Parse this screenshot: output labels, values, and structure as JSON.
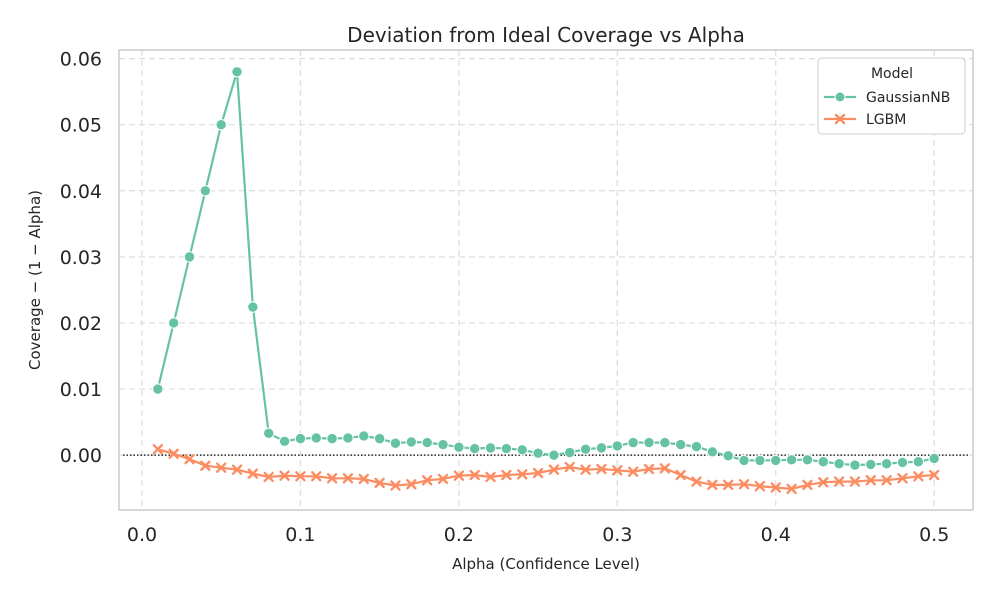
{
  "chart_data": {
    "type": "line",
    "title": "Deviation from Ideal Coverage vs Alpha",
    "xlabel": "Alpha (Confidence Level)",
    "ylabel": "Coverage − (1 − Alpha)",
    "xlim": [
      -0.0145,
      0.5245
    ],
    "ylim": [
      -0.0083,
      0.0613
    ],
    "xticks": [
      0.0,
      0.1,
      0.2,
      0.3,
      0.4,
      0.5
    ],
    "xtick_labels": [
      "0.0",
      "0.1",
      "0.2",
      "0.3",
      "0.4",
      "0.5"
    ],
    "yticks": [
      0.0,
      0.01,
      0.02,
      0.03,
      0.04,
      0.05,
      0.06
    ],
    "ytick_labels": [
      "0.00",
      "0.01",
      "0.02",
      "0.03",
      "0.04",
      "0.05",
      "0.06"
    ],
    "grid": true,
    "reference_line": {
      "y": 0,
      "style": "dotted",
      "color": "#000000"
    },
    "legend": {
      "title": "Model",
      "position": "top-right"
    },
    "x": [
      0.01,
      0.02,
      0.03,
      0.04,
      0.05,
      0.06,
      0.07,
      0.08,
      0.09,
      0.1,
      0.11,
      0.12,
      0.13,
      0.14,
      0.15,
      0.16,
      0.17,
      0.18,
      0.19,
      0.2,
      0.21,
      0.22,
      0.23,
      0.24,
      0.25,
      0.26,
      0.27,
      0.28,
      0.29,
      0.3,
      0.31,
      0.32,
      0.33,
      0.34,
      0.35,
      0.36,
      0.37,
      0.38,
      0.39,
      0.4,
      0.41,
      0.42,
      0.43,
      0.44,
      0.45,
      0.46,
      0.47,
      0.48,
      0.49,
      0.5
    ],
    "series": [
      {
        "name": "GaussianNB",
        "color": "#66c2a5",
        "marker": "circle",
        "values": [
          0.01,
          0.02,
          0.03,
          0.04,
          0.05,
          0.058,
          0.0224,
          0.0033,
          0.0021,
          0.0025,
          0.0026,
          0.0025,
          0.0026,
          0.0029,
          0.0025,
          0.0018,
          0.002,
          0.0019,
          0.0016,
          0.0012,
          0.001,
          0.0011,
          0.001,
          0.0008,
          0.0003,
          0.0,
          0.0004,
          0.0009,
          0.0011,
          0.0014,
          0.0019,
          0.0019,
          0.0019,
          0.0016,
          0.0013,
          0.0005,
          -0.0001,
          -0.0008,
          -0.0008,
          -0.0008,
          -0.0007,
          -0.0007,
          -0.001,
          -0.0013,
          -0.0015,
          -0.0014,
          -0.0013,
          -0.0011,
          -0.001,
          -0.0005
        ]
      },
      {
        "name": "LGBM",
        "color": "#fc8d62",
        "marker": "x",
        "values": [
          0.0009,
          0.0002,
          -0.0006,
          -0.0016,
          -0.0019,
          -0.0022,
          -0.0028,
          -0.0033,
          -0.0031,
          -0.0032,
          -0.0032,
          -0.0035,
          -0.0035,
          -0.0036,
          -0.0042,
          -0.0046,
          -0.0044,
          -0.0038,
          -0.0036,
          -0.0031,
          -0.003,
          -0.0033,
          -0.003,
          -0.0029,
          -0.0027,
          -0.0022,
          -0.0018,
          -0.0022,
          -0.0021,
          -0.0023,
          -0.0025,
          -0.0021,
          -0.002,
          -0.003,
          -0.004,
          -0.0045,
          -0.0045,
          -0.0044,
          -0.0047,
          -0.0049,
          -0.0051,
          -0.0045,
          -0.0041,
          -0.004,
          -0.004,
          -0.0038,
          -0.0038,
          -0.0035,
          -0.0032,
          -0.003
        ]
      }
    ]
  }
}
